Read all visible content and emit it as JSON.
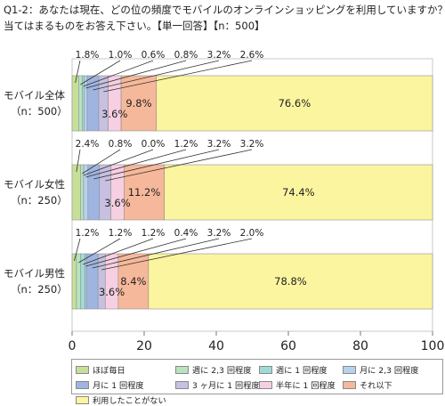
{
  "header": {
    "question_line1": "Q1-2：あなたは現在、どの位の頻度でモバイルのオンラインショッピングを利用していますか？",
    "question_line2": "当てはまるものをお答え下さい。【単一回答】【n：500】"
  },
  "chart_data": {
    "type": "bar",
    "orientation": "horizontal",
    "stacked": true,
    "categories": [
      {
        "label_line1": "モバイル全体",
        "label_line2": "（n：500）"
      },
      {
        "label_line1": "モバイル女性",
        "label_line2": "（n：250）"
      },
      {
        "label_line1": "モバイル男性",
        "label_line2": "（n：250）"
      }
    ],
    "series": [
      {
        "name": "ほぼ毎日",
        "color": "#c6e09a",
        "values": [
          1.8,
          2.4,
          1.2
        ]
      },
      {
        "name": "週に 2,3 回程度",
        "color": "#b9e2bd",
        "values": [
          1.0,
          0.8,
          1.2
        ]
      },
      {
        "name": "週に 1 回程度",
        "color": "#9fdbd6",
        "values": [
          0.6,
          0.0,
          1.2
        ]
      },
      {
        "name": "月に 2,3 回程度",
        "color": "#b5d2ef",
        "values": [
          0.8,
          1.2,
          0.4
        ]
      },
      {
        "name": "月に 1 回程度",
        "color": "#9fb5e0",
        "values": [
          3.2,
          3.2,
          3.2
        ]
      },
      {
        "name": "3 ヶ月に 1 回程度",
        "color": "#c7c0e0",
        "values": [
          2.6,
          3.2,
          2.0
        ]
      },
      {
        "name": "半年に 1 回程度",
        "color": "#f7cfe2",
        "values": [
          3.6,
          3.6,
          3.6
        ]
      },
      {
        "name": "それ以下",
        "color": "#f6b89a",
        "values": [
          9.8,
          11.2,
          8.4
        ]
      },
      {
        "name": "利用したことがない",
        "color": "#fbf59f",
        "values": [
          76.6,
          74.4,
          78.8
        ]
      }
    ],
    "value_labels": [
      [
        "1.8%",
        "1.0%",
        "0.6%",
        "0.8%",
        "3.2%",
        "2.6%",
        "3.6%",
        "9.8%",
        "76.6%"
      ],
      [
        "2.4%",
        "0.8%",
        "0.0%",
        "1.2%",
        "3.2%",
        "3.2%",
        "3.6%",
        "11.2%",
        "74.4%"
      ],
      [
        "1.2%",
        "1.2%",
        "1.2%",
        "0.4%",
        "3.2%",
        "2.0%",
        "3.6%",
        "8.4%",
        "78.8%"
      ]
    ],
    "xlim": [
      0,
      100
    ],
    "xticks": [
      "0",
      "20",
      "40",
      "60",
      "80",
      "100"
    ],
    "grid": false,
    "legend_position": "bottom"
  }
}
